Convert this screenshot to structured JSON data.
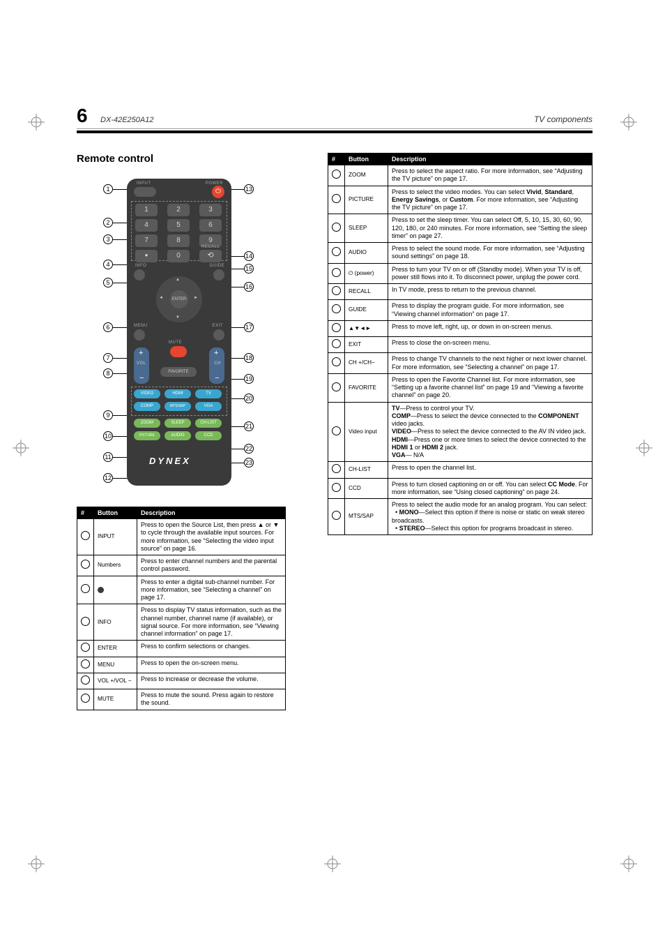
{
  "page": {
    "number": "6",
    "model": "DX-42E250A12",
    "header_right": "TV components"
  },
  "heading": "Remote control",
  "remote": {
    "labels": {
      "input": "INPUT",
      "power": "POWER",
      "recall": "RECALL",
      "info": "INFO",
      "guide": "GUIDE",
      "menu": "MENU",
      "exit": "EXIT",
      "mute": "MUTE",
      "vol": "VOL",
      "ch": "CH",
      "favorite": "FAVORITE",
      "enter": "ENTER",
      "video": "VIDEO",
      "hdmi": "HDMI",
      "tv": "TV",
      "comp": "COMP",
      "mtssap": "MTS/SAP",
      "vga": "VGA",
      "zoom": "ZOOM",
      "sleep": "SLEEP",
      "chlist": "CH-LIST",
      "picture": "PICTURE",
      "audio": "AUDIO",
      "ccd": "CCD"
    },
    "brand": "DYNEX"
  },
  "table_left": {
    "headers": [
      "#",
      "Button",
      "Description"
    ],
    "rows": [
      {
        "btn": "INPUT",
        "desc": "Press to open the Source List, then press ▲ or ▼ to cycle through the available input sources. For more information, see “Selecting the video input source” on page 16."
      },
      {
        "btn": "Numbers",
        "desc": "Press to enter channel numbers and the parental control password."
      },
      {
        "btn": "●",
        "desc": "Press to enter a digital sub-channel number. For more information, see “Selecting a channel” on page 17."
      },
      {
        "btn": "INFO",
        "desc": "Press to display TV status information, such as the channel number, channel name (if available), or signal source. For more information, see “Viewing channel information” on page 17."
      },
      {
        "btn": "ENTER",
        "desc": "Press to confirm selections or changes."
      },
      {
        "btn": "MENU",
        "desc": "Press to open the on-screen menu."
      },
      {
        "btn": "VOL +/VOL −",
        "desc": "Press to increase or decrease the volume."
      },
      {
        "btn": "MUTE",
        "desc": "Press to mute the sound. Press again to restore the sound."
      }
    ]
  },
  "table_right": {
    "headers": [
      "#",
      "Button",
      "Description"
    ],
    "rows": [
      {
        "btn": "ZOOM",
        "desc": "Press to select the aspect ratio. For more information, see “Adjusting the TV picture” on page 17."
      },
      {
        "btn": "PICTURE",
        "desc": "Press to select the video modes. You can select <b>Vivid</b>, <b>Standard</b>, <b>Energy Savings</b>, or <b>Custom</b>. For more information, see “Adjusting the TV picture” on page 17."
      },
      {
        "btn": "SLEEP",
        "desc": "Press to set the sleep timer. You can select Off, 5, 10, 15, 30, 60, 90, 120, 180, or 240 minutes. For more information, see “Setting the sleep timer” on page 27."
      },
      {
        "btn": "AUDIO",
        "desc": "Press to select the sound mode. For more information, see “Adjusting sound settings” on page 18."
      },
      {
        "btn": "⏻ (power)",
        "desc": "Press to turn your TV on or off (Standby mode). When your TV is off, power still flows into it. To disconnect power, unplug the power cord."
      },
      {
        "btn": "RECALL",
        "desc": "In TV mode, press to return to the previous channel."
      },
      {
        "btn": "GUIDE",
        "desc": "Press to display the program guide. For more information, see “Viewing channel information” on page 17."
      },
      {
        "btn": "▲▼◄►",
        "desc": "Press to move left, right, up, or down in on-screen menus."
      },
      {
        "btn": "EXIT",
        "desc": "Press to close the on-screen menu."
      },
      {
        "btn": "CH +/CH−",
        "desc": "Press to change TV channels to the next higher or next lower channel. For more information, see “Selecting a channel” on page 17."
      },
      {
        "btn": "FAVORITE",
        "desc": "Press to open the Favorite Channel list. For more information, see “Setting up a favorite channel list” on page 19 and “Viewing a favorite channel” on page 20."
      },
      {
        "btn": "Video input",
        "desc": "<b>TV</b>—Press to control your TV.<br><b>COMP</b>—Press to select the device connected to the <b>COMPONENT</b> video jacks.<br><b>VIDEO</b>—Press to select the device connected to the AV IN video jack.<br><b>HDMI</b>—Press one or more times to select the device connected to the <b>HDMI 1</b> or <b>HDMI 2</b> jack.<br><b>VGA</b>— N/A"
      },
      {
        "btn": "CH-LIST",
        "desc": "Press to open the channel list."
      },
      {
        "btn": "CCD",
        "desc": "Press to turn closed captioning on or off. You can select <b>CC Mode</b>. For more information, see “Using closed captioning” on page 24."
      },
      {
        "btn": "MTS/SAP",
        "desc": "Press to select the audio mode for an analog program. You can select:<br>&nbsp;&nbsp;• <b>MONO</b>—Select this option if there is noise or static on weak stereo broadcasts.<br>&nbsp;&nbsp;• <b>STEREO</b>—Select this option for programs broadcast in stereo."
      }
    ]
  },
  "callouts": {
    "right": [
      "13",
      "14",
      "15",
      "16",
      "17",
      "18",
      "19",
      "20",
      "21",
      "22",
      "23"
    ]
  }
}
